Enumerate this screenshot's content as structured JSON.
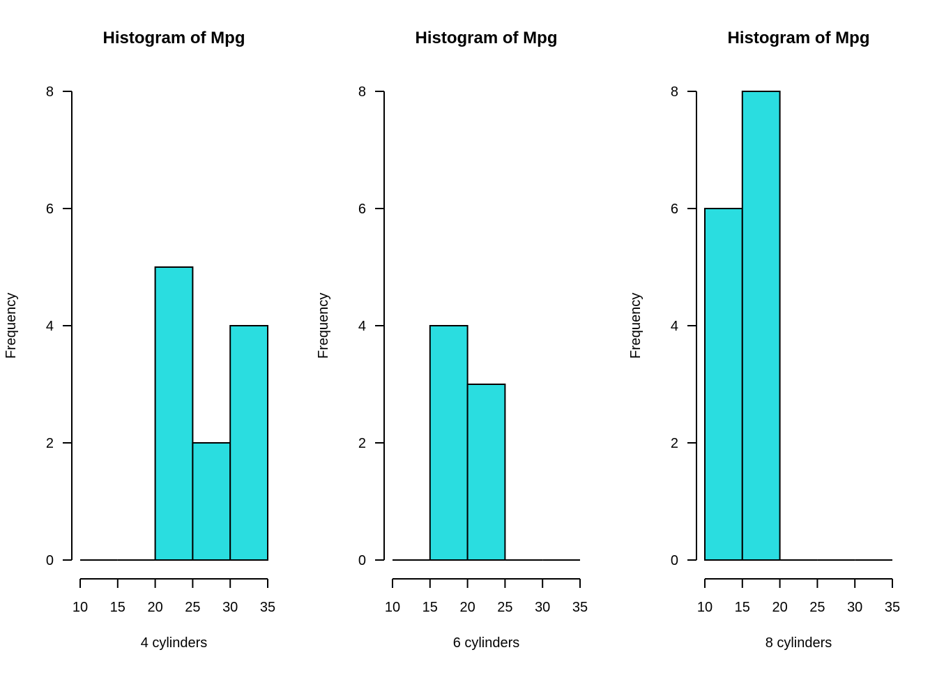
{
  "chart_data": [
    {
      "type": "bar",
      "subtype": "histogram",
      "title": "Histogram of Mpg",
      "xlabel": "4 cylinders",
      "ylabel": "Frequency",
      "bin_edges": [
        10,
        15,
        20,
        25,
        30,
        35
      ],
      "values": [
        0,
        0,
        5,
        2,
        4
      ],
      "xticks": [
        "10",
        "15",
        "20",
        "25",
        "30",
        "35"
      ],
      "yticks": [
        "0",
        "2",
        "4",
        "6",
        "8"
      ],
      "xlim": [
        10,
        35
      ],
      "ylim": [
        0,
        8
      ],
      "bar_color": "#2ADDE0",
      "grid": false
    },
    {
      "type": "bar",
      "subtype": "histogram",
      "title": "Histogram of Mpg",
      "xlabel": "6 cylinders",
      "ylabel": "Frequency",
      "bin_edges": [
        10,
        15,
        20,
        25,
        30,
        35
      ],
      "values": [
        0,
        4,
        3,
        0,
        0
      ],
      "xticks": [
        "10",
        "15",
        "20",
        "25",
        "30",
        "35"
      ],
      "yticks": [
        "0",
        "2",
        "4",
        "6",
        "8"
      ],
      "xlim": [
        10,
        35
      ],
      "ylim": [
        0,
        8
      ],
      "bar_color": "#2ADDE0",
      "grid": false
    },
    {
      "type": "bar",
      "subtype": "histogram",
      "title": "Histogram of Mpg",
      "xlabel": "8 cylinders",
      "ylabel": "Frequency",
      "bin_edges": [
        10,
        15,
        20,
        25,
        30,
        35
      ],
      "values": [
        6,
        8,
        0,
        0,
        0
      ],
      "xticks": [
        "10",
        "15",
        "20",
        "25",
        "30",
        "35"
      ],
      "yticks": [
        "0",
        "2",
        "4",
        "6",
        "8"
      ],
      "xlim": [
        10,
        35
      ],
      "ylim": [
        0,
        8
      ],
      "bar_color": "#2ADDE0",
      "grid": false
    }
  ]
}
